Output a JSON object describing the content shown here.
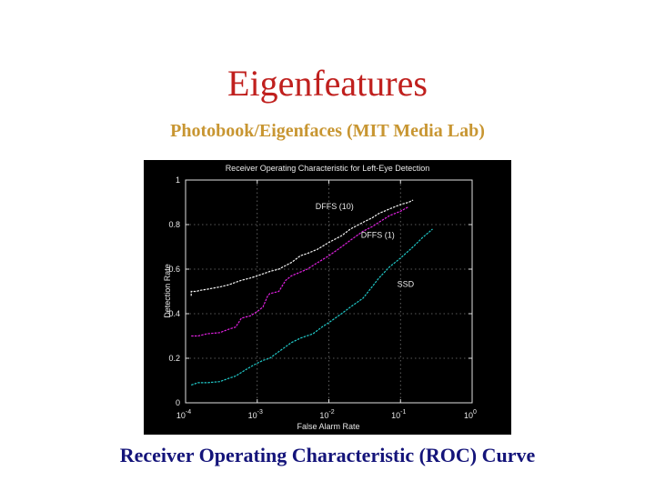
{
  "slide": {
    "title": "Eigenfeatures",
    "subtitle": "Photobook/Eigenfaces (MIT Media Lab)",
    "caption": "Receiver Operating Characteristic (ROC) Curve"
  },
  "colors": {
    "title": "#c0201e",
    "subtitle": "#c89632",
    "caption": "#14147a",
    "chart_bg": "#000000"
  },
  "chart_data": {
    "type": "line",
    "title": "Receiver Operating Characteristic for Left-Eye Detection",
    "xlabel": "False Alarm Rate",
    "ylabel": "Detection Rate",
    "xscale": "log",
    "xlim": [
      0.0001,
      1
    ],
    "ylim": [
      0,
      1
    ],
    "grid": true,
    "x_tick_labels": [
      {
        "base": "10",
        "exp": "-4"
      },
      {
        "base": "10",
        "exp": "-3"
      },
      {
        "base": "10",
        "exp": "-2"
      },
      {
        "base": "10",
        "exp": "-1"
      },
      {
        "base": "10",
        "exp": "0"
      }
    ],
    "y_ticks": [
      {
        "value": 1,
        "label": "1"
      },
      {
        "value": 0.8,
        "label": "0.8"
      },
      {
        "value": 0.6,
        "label": "0.6"
      },
      {
        "value": 0.4,
        "label": "0.4"
      },
      {
        "value": 0.2,
        "label": "0.2"
      },
      {
        "value": 0,
        "label": "0"
      }
    ],
    "series": [
      {
        "name": "DFFS (10)",
        "color": "#f2f2f2",
        "points": [
          [
            0.00012,
            0.48
          ],
          [
            0.00012,
            0.5
          ],
          [
            0.00014,
            0.5
          ],
          [
            0.00016,
            0.505
          ],
          [
            0.0002,
            0.51
          ],
          [
            0.0003,
            0.52
          ],
          [
            0.0004,
            0.53
          ],
          [
            0.0006,
            0.55
          ],
          [
            0.0008,
            0.56
          ],
          [
            0.001,
            0.57
          ],
          [
            0.0015,
            0.59
          ],
          [
            0.002,
            0.6
          ],
          [
            0.003,
            0.63
          ],
          [
            0.004,
            0.66
          ],
          [
            0.005,
            0.67
          ],
          [
            0.007,
            0.69
          ],
          [
            0.01,
            0.72
          ],
          [
            0.015,
            0.75
          ],
          [
            0.02,
            0.78
          ],
          [
            0.03,
            0.81
          ],
          [
            0.04,
            0.83
          ],
          [
            0.05,
            0.85
          ],
          [
            0.07,
            0.87
          ],
          [
            0.1,
            0.89
          ],
          [
            0.13,
            0.9
          ],
          [
            0.15,
            0.91
          ]
        ]
      },
      {
        "name": "DFFS (1)",
        "color": "#e020e0",
        "points": [
          [
            0.00012,
            0.3
          ],
          [
            0.00015,
            0.3
          ],
          [
            0.0002,
            0.31
          ],
          [
            0.0003,
            0.315
          ],
          [
            0.0004,
            0.33
          ],
          [
            0.0005,
            0.34
          ],
          [
            0.00055,
            0.36
          ],
          [
            0.0006,
            0.38
          ],
          [
            0.0008,
            0.39
          ],
          [
            0.001,
            0.41
          ],
          [
            0.0012,
            0.43
          ],
          [
            0.0014,
            0.48
          ],
          [
            0.0015,
            0.49
          ],
          [
            0.002,
            0.5
          ],
          [
            0.0025,
            0.55
          ],
          [
            0.003,
            0.57
          ],
          [
            0.005,
            0.6
          ],
          [
            0.007,
            0.63
          ],
          [
            0.01,
            0.66
          ],
          [
            0.015,
            0.7
          ],
          [
            0.02,
            0.73
          ],
          [
            0.03,
            0.77
          ],
          [
            0.04,
            0.79
          ],
          [
            0.05,
            0.81
          ],
          [
            0.07,
            0.84
          ],
          [
            0.1,
            0.86
          ],
          [
            0.13,
            0.88
          ]
        ]
      },
      {
        "name": "SSD",
        "color": "#20c8c8",
        "points": [
          [
            0.00012,
            0.08
          ],
          [
            0.00015,
            0.09
          ],
          [
            0.0002,
            0.09
          ],
          [
            0.0003,
            0.095
          ],
          [
            0.0004,
            0.11
          ],
          [
            0.0005,
            0.12
          ],
          [
            0.0007,
            0.15
          ],
          [
            0.0009,
            0.17
          ],
          [
            0.0012,
            0.19
          ],
          [
            0.0015,
            0.2
          ],
          [
            0.002,
            0.23
          ],
          [
            0.003,
            0.27
          ],
          [
            0.004,
            0.29
          ],
          [
            0.006,
            0.31
          ],
          [
            0.008,
            0.34
          ],
          [
            0.01,
            0.36
          ],
          [
            0.015,
            0.4
          ],
          [
            0.02,
            0.43
          ],
          [
            0.03,
            0.47
          ],
          [
            0.04,
            0.52
          ],
          [
            0.05,
            0.56
          ],
          [
            0.07,
            0.61
          ],
          [
            0.1,
            0.65
          ],
          [
            0.15,
            0.7
          ],
          [
            0.2,
            0.74
          ],
          [
            0.28,
            0.78
          ]
        ]
      }
    ],
    "annotations": [
      {
        "text": "DFFS (10)",
        "x": 0.0065,
        "y": 0.87
      },
      {
        "text": "DFFS (1)",
        "x": 0.028,
        "y": 0.74
      },
      {
        "text": "SSD",
        "x": 0.09,
        "y": 0.52
      }
    ]
  }
}
